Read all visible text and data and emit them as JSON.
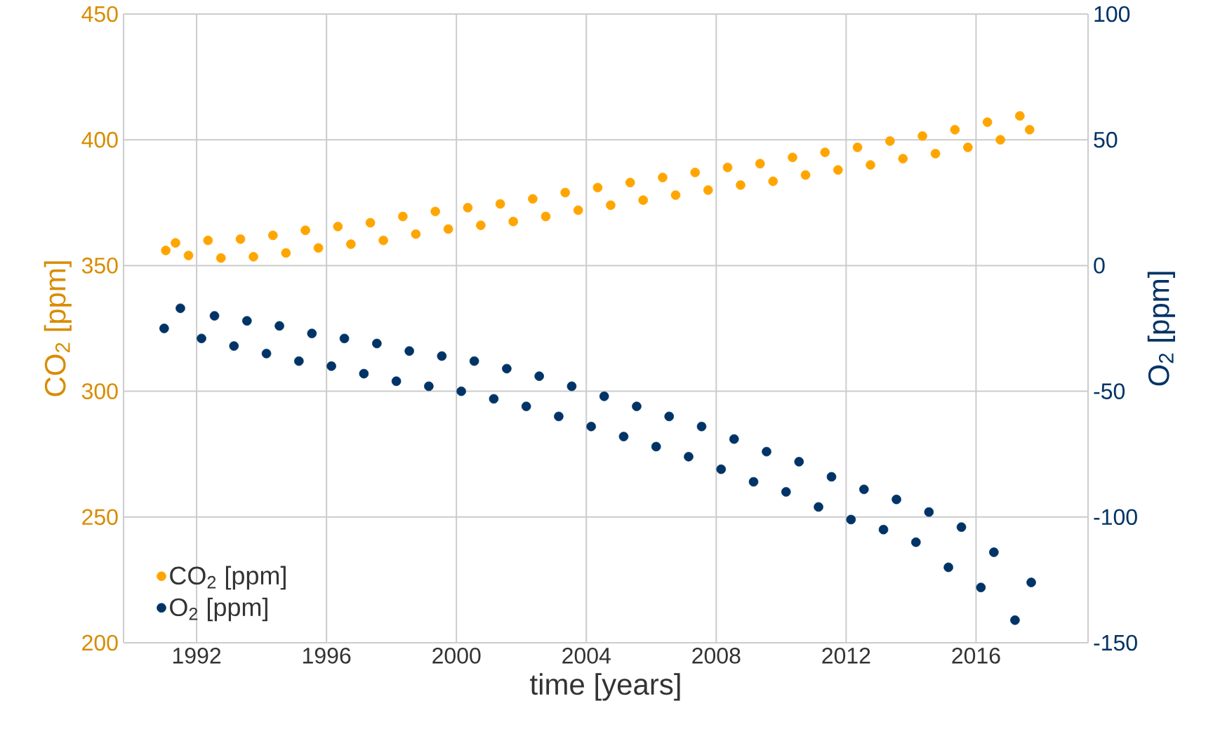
{
  "chart_data": {
    "type": "scatter",
    "xlabel": "time [years]",
    "ylabel": "CO$_{2}$ [ppm]",
    "y2label": "O$_{2}$ [ppm]",
    "xlim": [
      1989.75,
      2019.45
    ],
    "xticks": [
      1992,
      1996,
      2000,
      2004,
      2008,
      2012,
      2016
    ],
    "ylim": [
      200,
      450
    ],
    "yticks": [
      200,
      250,
      300,
      350,
      400,
      450
    ],
    "y2lim": [
      -150,
      100
    ],
    "y2ticks": [
      -150,
      -100,
      -50,
      0,
      50,
      100
    ],
    "grid": true,
    "legend": "bottom left",
    "marker": "circle",
    "series": [
      {
        "name": "CO$_{2}$ [ppm]",
        "color": "#ffa500",
        "axis": "y",
        "x": [
          1991.05,
          1991.35,
          1991.75,
          1992.35,
          1992.75,
          1993.35,
          1993.75,
          1994.35,
          1994.75,
          1995.35,
          1995.75,
          1996.35,
          1996.75,
          1997.35,
          1997.75,
          1998.35,
          1998.75,
          1999.35,
          1999.75,
          2000.35,
          2000.75,
          2001.35,
          2001.75,
          2002.35,
          2002.75,
          2003.35,
          2003.75,
          2004.35,
          2004.75,
          2005.35,
          2005.75,
          2006.35,
          2006.75,
          2007.35,
          2007.75,
          2008.35,
          2008.75,
          2009.35,
          2009.75,
          2010.35,
          2010.75,
          2011.35,
          2011.75,
          2012.35,
          2012.75,
          2013.35,
          2013.75,
          2014.35,
          2014.75,
          2015.35,
          2015.75,
          2016.35,
          2016.75,
          2017.35,
          2017.65
        ],
        "values": [
          356,
          359,
          354,
          360,
          353,
          360.5,
          353.5,
          362,
          355,
          364,
          357,
          365.5,
          358.5,
          367,
          360,
          369.5,
          362.5,
          371.5,
          364.5,
          373,
          366,
          374.5,
          367.5,
          376.5,
          369.5,
          379,
          372,
          381,
          374,
          383,
          376,
          385,
          378,
          387,
          380,
          389,
          382,
          390.5,
          383.5,
          393,
          386,
          395,
          388,
          397,
          390,
          399.5,
          392.5,
          401.5,
          394.5,
          404,
          397,
          407,
          400,
          409.5,
          404
        ]
      },
      {
        "name": "O$_{2}$ [ppm]",
        "color": "#003366",
        "axis": "y2",
        "x": [
          1991.0,
          1991.5,
          1992.15,
          1992.55,
          1993.15,
          1993.55,
          1994.15,
          1994.55,
          1995.15,
          1995.55,
          1996.15,
          1996.55,
          1997.15,
          1997.55,
          1998.15,
          1998.55,
          1999.15,
          1999.55,
          2000.15,
          2000.55,
          2001.15,
          2001.55,
          2002.15,
          2002.55,
          2003.15,
          2003.55,
          2004.15,
          2004.55,
          2005.15,
          2005.55,
          2006.15,
          2006.55,
          2007.15,
          2007.55,
          2008.15,
          2008.55,
          2009.15,
          2009.55,
          2010.15,
          2010.55,
          2011.15,
          2011.55,
          2012.15,
          2012.55,
          2013.15,
          2013.55,
          2014.15,
          2014.55,
          2015.15,
          2015.55,
          2016.15,
          2016.55,
          2017.2,
          2017.7
        ],
        "values": [
          -25,
          -17,
          -29,
          -20,
          -32,
          -22,
          -35,
          -24,
          -38,
          -27,
          -40,
          -29,
          -43,
          -31,
          -46,
          -34,
          -48,
          -36,
          -50,
          -38,
          -53,
          -41,
          -56,
          -44,
          -60,
          -48,
          -64,
          -52,
          -68,
          -56,
          -72,
          -60,
          -76,
          -64,
          -81,
          -69,
          -86,
          -74,
          -90,
          -78,
          -96,
          -84,
          -101,
          -89,
          -105,
          -93,
          -110,
          -98,
          -120,
          -104,
          -128,
          -114,
          -141,
          -126
        ]
      }
    ]
  }
}
